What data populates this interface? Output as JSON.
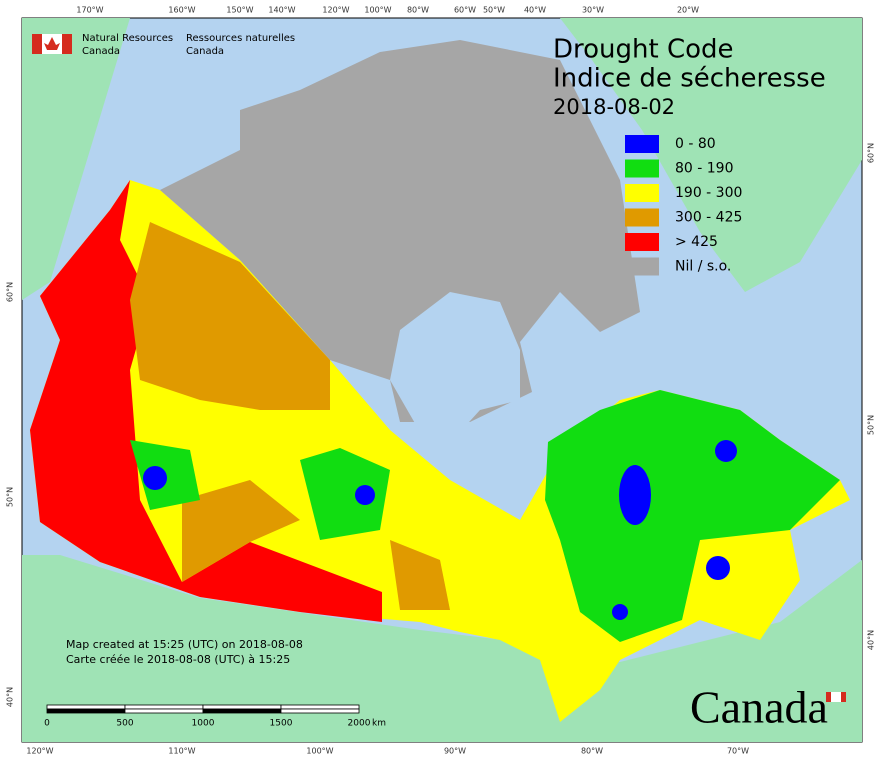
{
  "header": {
    "title": "Drought Code",
    "title_fr": "Indice de sécheresse",
    "date": "2018-08-02"
  },
  "agency": {
    "name_en": [
      "Natural Resources",
      "Canada"
    ],
    "name_fr": [
      "Ressources naturelles",
      "Canada"
    ]
  },
  "legend": [
    {
      "label": "0 - 80",
      "color": "#0000ff"
    },
    {
      "label": "80 - 190",
      "color": "#11dd11"
    },
    {
      "label": "190 - 300",
      "color": "#ffff00"
    },
    {
      "label": "300 - 425",
      "color": "#e09a00"
    },
    {
      "label": "> 425",
      "color": "#ff0000"
    },
    {
      "label": "Nil / s.o.",
      "color": "#a6a6a6"
    }
  ],
  "graticule": {
    "top": [
      "170°W",
      "160°W",
      "150°W",
      "140°W",
      "120°W",
      "100°W",
      "80°W",
      "60°W",
      "50°W",
      "40°W",
      "30°W",
      "20°W"
    ],
    "bottom": [
      "120°W",
      "110°W",
      "100°W",
      "90°W",
      "80°W",
      "70°W"
    ],
    "left": [
      "60°N",
      "50°N",
      "40°N"
    ],
    "right": [
      "60°N",
      "50°N",
      "40°N"
    ]
  },
  "credits": [
    "Map created at 15:25 (UTC) on 2018-08-08",
    "Carte créée le 2018-08-08 (UTC) à 15:25"
  ],
  "scale": {
    "ticks": [
      0,
      500,
      1000,
      1500,
      2000
    ],
    "unit": "km"
  },
  "wordmark": "Canada"
}
